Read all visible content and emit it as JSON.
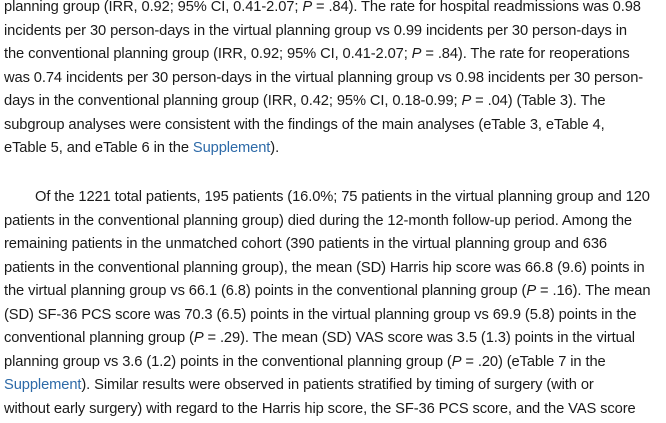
{
  "paragraph1": {
    "line1": [
      "planning group (IRR, 0.92; 95% CI, 0.41-2.07; ",
      "P",
      " = .84). The rate for hospital readmissions was 0.98"
    ],
    "line2": "incidents per 30 person-days in the virtual planning group vs 0.99 incidents per 30 person-days in",
    "line3": [
      "the conventional planning group (IRR, 0.92; 95% CI, 0.41-2.07; ",
      "P",
      " = .84). The rate for reoperations"
    ],
    "line4": "was 0.74 incidents per 30 person-days in the virtual planning group vs 0.98 incidents per 30 person-",
    "line5": [
      "days in the conventional planning group (IRR, 0.42; 95% CI, 0.18-0.99; ",
      "P",
      " = .04) (Table 3). The"
    ],
    "line6": "subgroup analyses were consistent with the findings of the main analyses (eTable 3, eTable 4,",
    "line7": [
      "eTable 5, and eTable 6 in the ",
      "Supplement",
      ")."
    ]
  },
  "paragraph2": {
    "line1": "Of the 1221 total patients, 195 patients (16.0%; 75 patients in the virtual planning group and 120",
    "line2": "patients in the conventional planning group) died during the 12-month follow-up period. Among the",
    "line3": "remaining patients in the unmatched cohort (390 patients in the virtual planning group and 636",
    "line4": "patients in the conventional planning group), the mean (SD) Harris hip score was 66.8 (9.6) points in",
    "line5": [
      "the virtual planning group vs 66.1 (6.8) points in the conventional planning group (",
      "P",
      " = .16). The mean"
    ],
    "line6": "(SD) SF-36 PCS score was 70.3 (6.5) points in the virtual planning group vs 69.9 (5.8) points in the",
    "line7": [
      "conventional planning group (",
      "P",
      " = .29). The mean (SD) VAS score was 3.5 (1.3) points in the virtual"
    ],
    "line8": [
      "planning group vs 3.6 (1.2) points in the conventional planning group (",
      "P",
      " = .20) (eTable 7 in the"
    ],
    "line9": [
      "Supplement",
      "). Similar results were observed in patients stratified by timing of surgery (with or"
    ],
    "line10": "without early surgery) with regard to the Harris hip score, the SF-36 PCS score, and the VAS score"
  },
  "colors": {
    "text": "#1a1a1a",
    "link": "#2d6aa8",
    "background": "#ffffff"
  }
}
